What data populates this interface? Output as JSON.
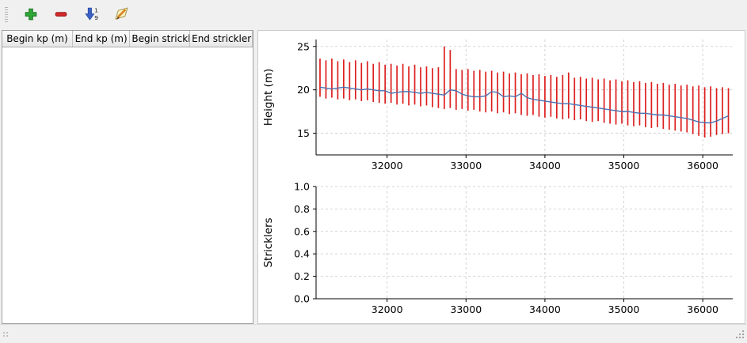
{
  "toolbar": {
    "buttons": [
      {
        "name": "add",
        "icon": "plus-icon"
      },
      {
        "name": "remove",
        "icon": "minus-icon"
      },
      {
        "name": "sort",
        "icon": "sort-numeric-icon"
      },
      {
        "name": "edit",
        "icon": "pencil-icon"
      }
    ]
  },
  "table": {
    "columns": [
      "Begin kp (m)",
      "End kp (m)",
      "Begin strickler",
      "End strickler"
    ],
    "rows": []
  },
  "chart_data": [
    {
      "type": "line",
      "title": "",
      "ylabel": "Height (m)",
      "xlabel": "",
      "xlim": [
        31100,
        36380
      ],
      "ylim": [
        12.5,
        25.8
      ],
      "xticks": [
        32000,
        33000,
        34000,
        35000,
        36000
      ],
      "xticklabels": [
        "32000",
        "33000",
        "34000",
        "35000",
        "36000"
      ],
      "yticks": [
        15,
        20,
        25
      ],
      "yticklabels": [
        "15",
        "20",
        "25"
      ],
      "grid": "dashed",
      "bar_color": "#dd1f1f",
      "line_color": "#4c72b0",
      "x": [
        31150,
        31225,
        31300,
        31375,
        31450,
        31525,
        31600,
        31675,
        31750,
        31825,
        31900,
        31975,
        32050,
        32125,
        32200,
        32275,
        32350,
        32425,
        32500,
        32575,
        32650,
        32725,
        32800,
        32875,
        32950,
        33025,
        33100,
        33175,
        33250,
        33325,
        33400,
        33475,
        33550,
        33625,
        33700,
        33775,
        33850,
        33925,
        34000,
        34075,
        34150,
        34225,
        34300,
        34375,
        34450,
        34525,
        34600,
        34675,
        34750,
        34825,
        34900,
        34975,
        35050,
        35125,
        35200,
        35275,
        35350,
        35425,
        35500,
        35575,
        35650,
        35725,
        35800,
        35875,
        35950,
        36025,
        36100,
        36175,
        36250,
        36325
      ],
      "bar_high": [
        23.6,
        23.4,
        23.6,
        23.3,
        23.5,
        23.2,
        23.4,
        23.1,
        23.3,
        23.0,
        23.2,
        22.9,
        23.0,
        22.8,
        23.0,
        22.7,
        22.9,
        22.6,
        22.7,
        22.5,
        22.6,
        25.0,
        24.6,
        22.4,
        22.3,
        22.4,
        22.2,
        22.3,
        22.1,
        22.2,
        22.0,
        22.1,
        21.9,
        22.0,
        21.8,
        21.9,
        21.7,
        21.8,
        21.6,
        21.7,
        21.5,
        21.7,
        22.0,
        21.4,
        21.5,
        21.3,
        21.4,
        21.2,
        21.3,
        21.1,
        21.2,
        21.0,
        21.1,
        20.9,
        21.0,
        20.8,
        20.9,
        20.7,
        20.8,
        20.6,
        20.7,
        20.5,
        20.6,
        20.4,
        20.5,
        20.3,
        20.4,
        20.2,
        20.3,
        20.2
      ],
      "bar_low": [
        19.2,
        19.0,
        19.1,
        18.9,
        19.0,
        18.8,
        18.9,
        18.7,
        18.8,
        18.6,
        18.5,
        18.4,
        18.5,
        18.3,
        18.4,
        18.2,
        18.3,
        18.1,
        18.2,
        18.0,
        17.9,
        17.8,
        17.9,
        17.7,
        17.8,
        17.6,
        17.7,
        17.5,
        17.4,
        17.5,
        17.3,
        17.4,
        17.2,
        17.3,
        17.1,
        17.0,
        17.1,
        16.9,
        16.8,
        16.9,
        16.7,
        16.6,
        16.7,
        16.5,
        16.6,
        16.4,
        16.3,
        16.4,
        16.2,
        16.1,
        16.0,
        16.1,
        15.9,
        15.8,
        15.9,
        15.7,
        15.6,
        15.7,
        15.5,
        15.4,
        15.3,
        15.2,
        15.1,
        14.9,
        14.7,
        14.5,
        14.6,
        14.8,
        14.9,
        15.0
      ],
      "line_y": [
        20.3,
        20.2,
        20.1,
        20.2,
        20.3,
        20.2,
        20.1,
        20.0,
        20.1,
        20.0,
        19.9,
        19.9,
        19.6,
        19.7,
        19.8,
        19.8,
        19.7,
        19.6,
        19.7,
        19.6,
        19.5,
        19.4,
        20.0,
        19.9,
        19.5,
        19.3,
        19.2,
        19.2,
        19.3,
        19.8,
        19.7,
        19.2,
        19.3,
        19.2,
        19.6,
        19.1,
        18.9,
        18.8,
        18.7,
        18.6,
        18.5,
        18.4,
        18.4,
        18.3,
        18.2,
        18.1,
        18.0,
        17.9,
        17.8,
        17.7,
        17.6,
        17.5,
        17.5,
        17.4,
        17.3,
        17.3,
        17.2,
        17.1,
        17.1,
        17.0,
        16.9,
        16.8,
        16.7,
        16.5,
        16.3,
        16.2,
        16.2,
        16.4,
        16.7,
        17.0
      ]
    },
    {
      "type": "line",
      "title": "",
      "ylabel": "Stricklers",
      "xlabel": "",
      "xlim": [
        31100,
        36380
      ],
      "ylim": [
        0.0,
        1.0
      ],
      "xticks": [
        32000,
        33000,
        34000,
        35000,
        36000
      ],
      "xticklabels": [
        "32000",
        "33000",
        "34000",
        "35000",
        "36000"
      ],
      "yticks": [
        0.0,
        0.2,
        0.4,
        0.6,
        0.8,
        1.0
      ],
      "yticklabels": [
        "0.0",
        "0.2",
        "0.4",
        "0.6",
        "0.8",
        "1.0"
      ],
      "grid": "dashed",
      "x": [],
      "line_y": []
    }
  ]
}
